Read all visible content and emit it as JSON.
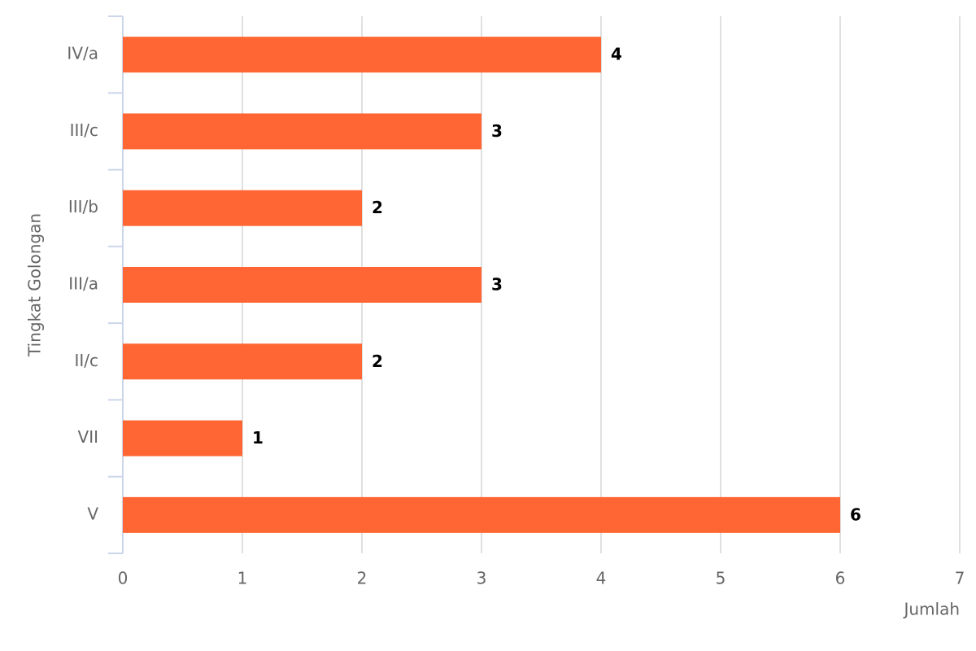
{
  "chart_data": {
    "type": "hbar",
    "categories": [
      "IV/a",
      "III/c",
      "III/b",
      "III/a",
      "II/c",
      "VII",
      "V"
    ],
    "values": [
      4,
      3,
      2,
      3,
      2,
      1,
      6
    ],
    "color": "#ff6633",
    "xlim": [
      0,
      7
    ],
    "xticks": [
      0,
      1,
      2,
      3,
      4,
      5,
      6,
      7
    ],
    "xlabel": "Jumlah",
    "ylabel": "Tingkat Golongan",
    "grid": true
  }
}
